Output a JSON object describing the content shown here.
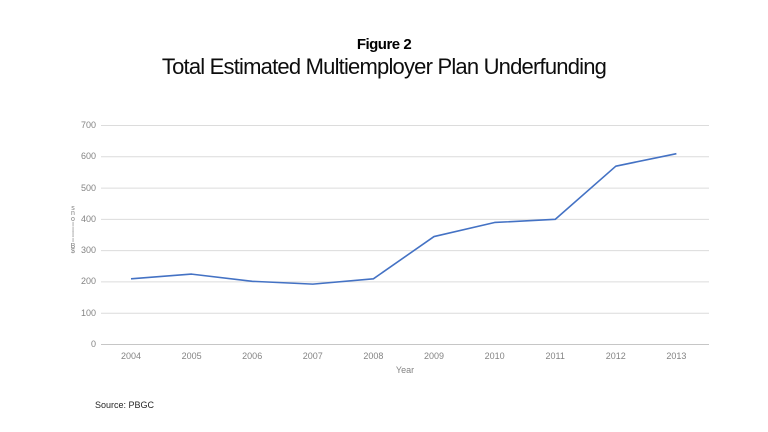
{
  "header": {
    "figure_label": "Figure 2",
    "title": "Total Estimated Multiemployer Plan Underfunding"
  },
  "source_note": "Source: PBGC",
  "chart_data": {
    "type": "line",
    "title": "Figure 2",
    "subtitle": "Total Estimated Multiemployer Plan Underfunding",
    "categories": [
      2004,
      2005,
      2006,
      2007,
      2008,
      2009,
      2010,
      2011,
      2012,
      2013
    ],
    "values": [
      210,
      225,
      202,
      193,
      210,
      345,
      390,
      400,
      570,
      610
    ],
    "xlabel": "Year",
    "ylabel": "$ Billions",
    "ylim": [
      0,
      700
    ],
    "ytick_step": 100,
    "yticks": [
      0,
      100,
      200,
      300,
      400,
      500,
      600,
      700
    ],
    "grid": true,
    "legend_position": "none",
    "source": "Source: PBGC",
    "colors": {
      "line": "#4472C4",
      "gridline": "#DCDCDC",
      "axis_line": "#C6C6C6",
      "tick_label": "#848484",
      "title_text": "#0d0d0d"
    }
  }
}
